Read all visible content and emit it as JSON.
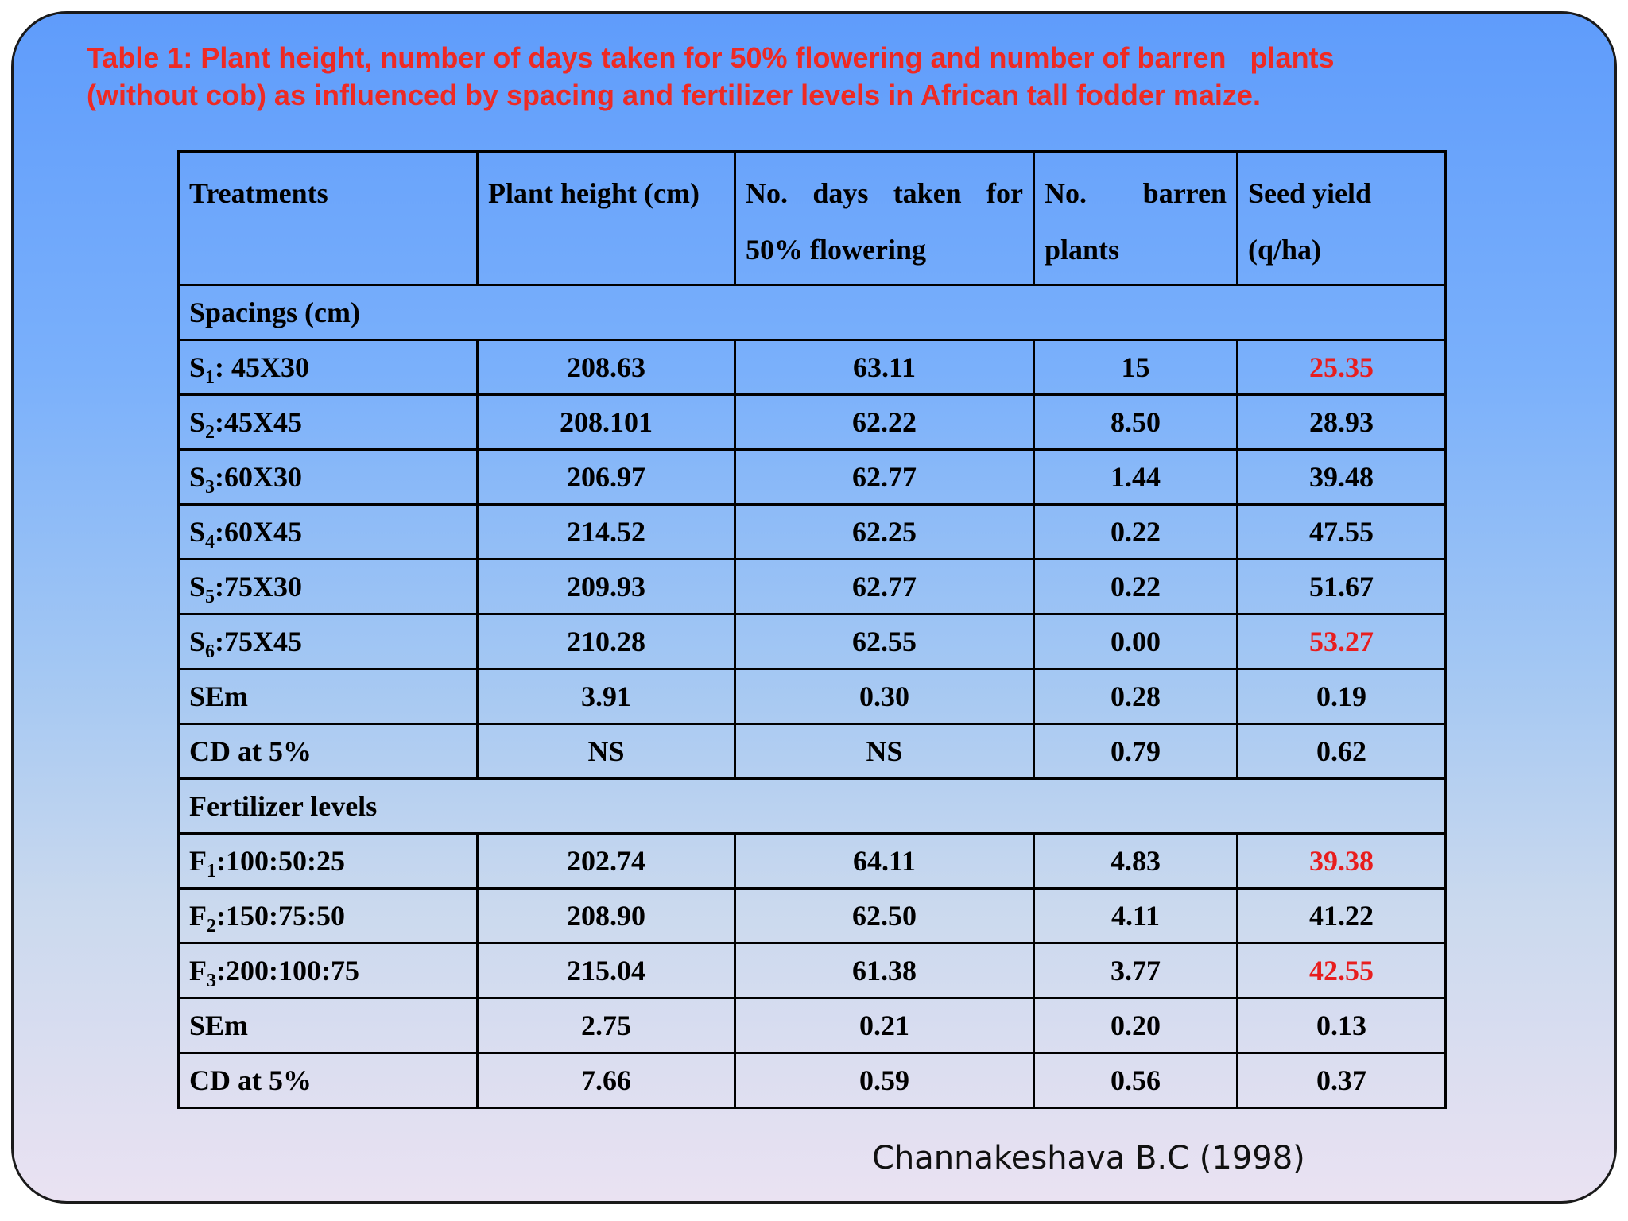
{
  "title": {
    "line1": "Table 1: Plant height, number of days taken for 50% flowering and number of barren   plants",
    "line2": "(without cob) as influenced by spacing and fertilizer levels in African tall fodder maize."
  },
  "table": {
    "headers": [
      {
        "line1": "Treatments",
        "line2": ""
      },
      {
        "line1": "Plant height (cm)",
        "line2": ""
      },
      {
        "line1": "No. days taken for",
        "line2": "50% flowering"
      },
      {
        "line1": "No. barren",
        "line2": "plants"
      },
      {
        "line1": "Seed yield",
        "line2": "(q/ha)"
      }
    ],
    "sections": [
      {
        "title": "Spacings (cm)",
        "rows": [
          {
            "label_main": "S",
            "label_sub": "1",
            "label_rest": ": 45X30",
            "values": [
              "208.63",
              "63.11",
              "15",
              "25.35"
            ],
            "highlight": true
          },
          {
            "label_main": "S",
            "label_sub": "2",
            "label_rest": ":45X45",
            "values": [
              "208.101",
              "62.22",
              "8.50",
              "28.93"
            ],
            "highlight": false
          },
          {
            "label_main": "S",
            "label_sub": "3",
            "label_rest": ":60X30",
            "values": [
              "206.97",
              "62.77",
              "1.44",
              "39.48"
            ],
            "highlight": false
          },
          {
            "label_main": "S",
            "label_sub": "4",
            "label_rest": ":60X45",
            "values": [
              "214.52",
              "62.25",
              "0.22",
              "47.55"
            ],
            "highlight": false
          },
          {
            "label_main": "S",
            "label_sub": "5",
            "label_rest": ":75X30",
            "values": [
              "209.93",
              "62.77",
              "0.22",
              "51.67"
            ],
            "highlight": false
          },
          {
            "label_main": "S",
            "label_sub": "6",
            "label_rest": ":75X45",
            "values": [
              "210.28",
              "62.55",
              "0.00",
              "53.27"
            ],
            "highlight": true
          },
          {
            "label_main": "SEm",
            "label_sub": "",
            "label_rest": "",
            "values": [
              "3.91",
              "0.30",
              "0.28",
              "0.19"
            ],
            "highlight": false
          },
          {
            "label_main": "CD at 5%",
            "label_sub": "",
            "label_rest": "",
            "values": [
              "NS",
              "NS",
              "0.79",
              "0.62"
            ],
            "highlight": false
          }
        ]
      },
      {
        "title": "Fertilizer levels",
        "rows": [
          {
            "label_main": "F",
            "label_sub": "1",
            "label_rest": ":100:50:25",
            "values": [
              "202.74",
              "64.11",
              "4.83",
              "39.38"
            ],
            "highlight": true
          },
          {
            "label_main": "F",
            "label_sub": "2",
            "label_rest": ":150:75:50",
            "values": [
              "208.90",
              "62.50",
              "4.11",
              "41.22"
            ],
            "highlight": false
          },
          {
            "label_main": "F",
            "label_sub": "3",
            "label_rest": ":200:100:75",
            "values": [
              "215.04",
              "61.38",
              "3.77",
              "42.55"
            ],
            "highlight": true
          },
          {
            "label_main": "SEm",
            "label_sub": "",
            "label_rest": "",
            "values": [
              "2.75",
              "0.21",
              "0.20",
              "0.13"
            ],
            "highlight": false
          },
          {
            "label_main": "CD at 5%",
            "label_sub": "",
            "label_rest": "",
            "values": [
              "7.66",
              "0.59",
              "0.56",
              "0.37"
            ],
            "highlight": false
          }
        ]
      }
    ]
  },
  "source": "Channakeshava B.C (1998)",
  "colors": {
    "title": "#ee2a24",
    "highlight_value": "#e81e1e",
    "text": "#000000",
    "background_top": "#5f9cfb",
    "background_bottom": "#eae2f2"
  }
}
